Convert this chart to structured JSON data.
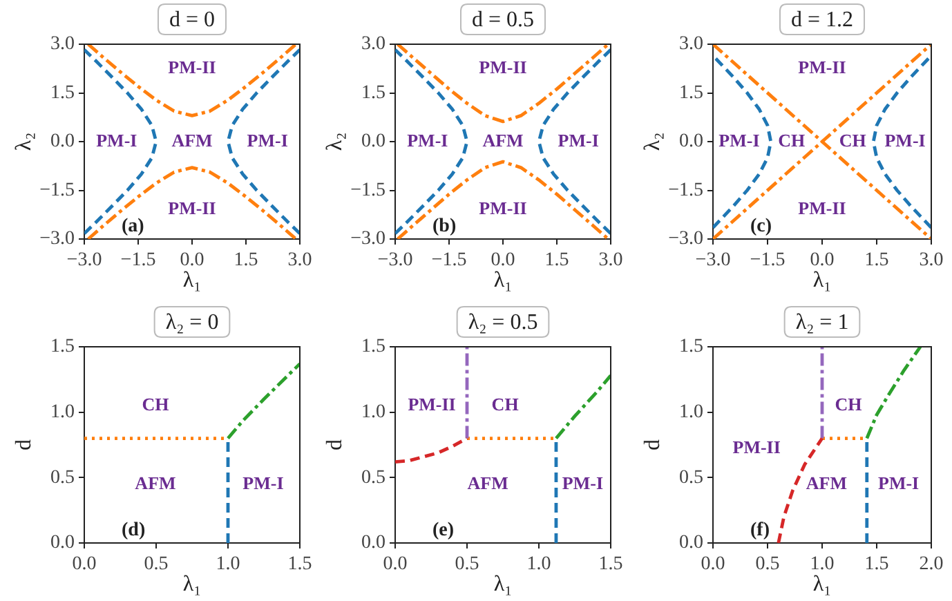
{
  "chart_data": [
    {
      "type": "line",
      "title": "d = 0",
      "xlabel": "λ₁",
      "ylabel": "λ₂",
      "xlim": [
        -3,
        3
      ],
      "ylim": [
        -3,
        3
      ],
      "marker": "none",
      "legend": false,
      "grid": false,
      "xticks": [
        {
          "value": -3,
          "label": "−3.0"
        },
        {
          "value": -1.5,
          "label": "−1.5"
        },
        {
          "value": 0,
          "label": "0.0"
        },
        {
          "value": 1.5,
          "label": "1.5"
        },
        {
          "value": 3,
          "label": "3.0"
        }
      ],
      "yticks": [
        {
          "value": -3,
          "label": "−3.0"
        },
        {
          "value": -1.5,
          "label": "−1.5"
        },
        {
          "value": 0,
          "label": "0.0"
        },
        {
          "value": 1.5,
          "label": "1.5"
        },
        {
          "value": 3,
          "label": "3.0"
        }
      ],
      "series": [
        {
          "color": "#1f77b4",
          "line_style": "dashed",
          "x": [
            3.0,
            2.69,
            2.24,
            1.8,
            1.41,
            1.12,
            1,
            1.12,
            1.41,
            1.8,
            2.24,
            2.69,
            3.0
          ],
          "values": [
            -2.83,
            -2.5,
            -2,
            -1.5,
            -1,
            -0.5,
            0,
            0.5,
            1,
            1.5,
            2,
            2.5,
            2.83
          ]
        },
        {
          "color": "#1f77b4",
          "line_style": "dashed",
          "x": [
            -3.0,
            -2.69,
            -2.24,
            -1.8,
            -1.41,
            -1.12,
            -1,
            -1.12,
            -1.41,
            -1.8,
            -2.24,
            -2.69,
            -3.0
          ],
          "values": [
            -2.83,
            -2.5,
            -2,
            -1.5,
            -1,
            -0.5,
            0,
            0.5,
            1,
            1.5,
            2,
            2.5,
            2.83
          ]
        },
        {
          "color": "#ff7f0e",
          "line_style": "dashdot",
          "x": [
            -2.89,
            -2.5,
            -2,
            -1.5,
            -1,
            -0.5,
            0,
            0.5,
            1,
            1.5,
            2,
            2.5,
            2.89
          ],
          "values": [
            3,
            2.62,
            2.15,
            1.7,
            1.28,
            0.94,
            0.8,
            0.94,
            1.28,
            1.7,
            2.15,
            2.62,
            3
          ]
        },
        {
          "color": "#ff7f0e",
          "line_style": "dashdot",
          "x": [
            -2.89,
            -2.5,
            -2,
            -1.5,
            -1,
            -0.5,
            0,
            0.5,
            1,
            1.5,
            2,
            2.5,
            2.89
          ],
          "values": [
            -3,
            -2.62,
            -2.15,
            -1.7,
            -1.28,
            -0.94,
            -0.8,
            -0.94,
            -1.28,
            -1.7,
            -2.15,
            -2.62,
            -3
          ]
        }
      ],
      "annotations": [
        "PM-II",
        "PM-I",
        "AFM",
        "PM-I",
        "PM-II",
        "(a)"
      ]
    },
    {
      "type": "line",
      "title": "d = 0.5",
      "xlabel": "λ₁",
      "ylabel": "λ₂",
      "xlim": [
        -3,
        3
      ],
      "ylim": [
        -3,
        3
      ],
      "marker": "none",
      "legend": false,
      "grid": false,
      "xticks": [
        {
          "value": -3,
          "label": "−3.0"
        },
        {
          "value": -1.5,
          "label": "−1.5"
        },
        {
          "value": 0,
          "label": "0.0"
        },
        {
          "value": 1.5,
          "label": "1.5"
        },
        {
          "value": 3,
          "label": "3.0"
        }
      ],
      "yticks": [
        {
          "value": -3,
          "label": "−3.0"
        },
        {
          "value": -1.5,
          "label": "−1.5"
        },
        {
          "value": 0,
          "label": "0.0"
        },
        {
          "value": 1.5,
          "label": "1.5"
        },
        {
          "value": 3,
          "label": "3.0"
        }
      ],
      "series": [
        {
          "color": "#1f77b4",
          "line_style": "dashed",
          "x": [
            3.0,
            2.69,
            2.24,
            1.8,
            1.41,
            1.12,
            1,
            1.12,
            1.41,
            1.8,
            2.24,
            2.69,
            3.0
          ],
          "values": [
            -2.83,
            -2.5,
            -2,
            -1.5,
            -1,
            -0.5,
            0,
            0.5,
            1,
            1.5,
            2,
            2.5,
            2.83
          ]
        },
        {
          "color": "#1f77b4",
          "line_style": "dashed",
          "x": [
            -3.0,
            -2.69,
            -2.24,
            -1.8,
            -1.41,
            -1.12,
            -1,
            -1.12,
            -1.41,
            -1.8,
            -2.24,
            -2.69,
            -3.0
          ],
          "values": [
            -2.83,
            -2.5,
            -2,
            -1.5,
            -1,
            -0.5,
            0,
            0.5,
            1,
            1.5,
            2,
            2.5,
            2.83
          ]
        },
        {
          "color": "#ff7f0e",
          "line_style": "dashdot",
          "x": [
            -2.93,
            -2.5,
            -2,
            -1.5,
            -1,
            -0.5,
            0,
            0.5,
            1,
            1.5,
            2,
            2.5,
            2.93
          ],
          "values": [
            3,
            2.58,
            2.1,
            1.62,
            1.18,
            0.8,
            0.62,
            0.8,
            1.18,
            1.62,
            2.1,
            2.58,
            3
          ]
        },
        {
          "color": "#ff7f0e",
          "line_style": "dashdot",
          "x": [
            -2.93,
            -2.5,
            -2,
            -1.5,
            -1,
            -0.5,
            0,
            0.5,
            1,
            1.5,
            2,
            2.5,
            2.93
          ],
          "values": [
            -3,
            -2.58,
            -2.1,
            -1.62,
            -1.18,
            -0.8,
            -0.62,
            -0.8,
            -1.18,
            -1.62,
            -2.1,
            -2.58,
            -3
          ]
        }
      ],
      "annotations": [
        "PM-II",
        "PM-I",
        "AFM",
        "PM-I",
        "PM-II",
        "(b)"
      ]
    },
    {
      "type": "line",
      "title": "d = 1.2",
      "xlabel": "λ₁",
      "ylabel": "λ₂",
      "xlim": [
        -3,
        3
      ],
      "ylim": [
        -3,
        3
      ],
      "marker": "none",
      "legend": false,
      "grid": false,
      "xticks": [
        {
          "value": -3,
          "label": "−3.0"
        },
        {
          "value": -1.5,
          "label": "−1.5"
        },
        {
          "value": 0,
          "label": "0.0"
        },
        {
          "value": 1.5,
          "label": "1.5"
        },
        {
          "value": 3,
          "label": "3.0"
        }
      ],
      "yticks": [
        {
          "value": -3,
          "label": "−3.0"
        },
        {
          "value": -1.5,
          "label": "−1.5"
        },
        {
          "value": 0,
          "label": "0.0"
        },
        {
          "value": 1.5,
          "label": "1.5"
        },
        {
          "value": 3,
          "label": "3.0"
        }
      ],
      "series": [
        {
          "color": "#1f77b4",
          "line_style": "dashed",
          "x": [
            3.0,
            2.45,
            2.06,
            1.73,
            1.5,
            1.41,
            1.5,
            1.73,
            2.06,
            2.45,
            3.0
          ],
          "values": [
            -2.65,
            -2,
            -1.5,
            -1,
            -0.5,
            0,
            0.5,
            1,
            1.5,
            2,
            2.65
          ]
        },
        {
          "color": "#1f77b4",
          "line_style": "dashed",
          "x": [
            -3.0,
            -2.45,
            -2.06,
            -1.73,
            -1.5,
            -1.41,
            -1.5,
            -1.73,
            -2.06,
            -2.45,
            -3.0
          ],
          "values": [
            -2.65,
            -2,
            -1.5,
            -1,
            -0.5,
            0,
            0.5,
            1,
            1.5,
            2,
            2.65
          ]
        },
        {
          "color": "#ff7f0e",
          "line_style": "dashdot",
          "x": [
            -3,
            0,
            3
          ],
          "values": [
            -3,
            0,
            3
          ]
        },
        {
          "color": "#ff7f0e",
          "line_style": "dashdot",
          "x": [
            -3,
            0,
            3
          ],
          "values": [
            3,
            0,
            -3
          ]
        }
      ],
      "annotations": [
        "PM-II",
        "PM-I",
        "CH",
        "CH",
        "PM-I",
        "PM-II",
        "(c)"
      ]
    },
    {
      "type": "line",
      "title": "λ₂ = 0",
      "xlabel": "λ₁",
      "ylabel": "d",
      "xlim": [
        0,
        1.5
      ],
      "ylim": [
        0,
        1.5
      ],
      "marker": "none",
      "legend": false,
      "grid": false,
      "xticks": [
        {
          "value": 0,
          "label": "0.0"
        },
        {
          "value": 0.5,
          "label": "0.5"
        },
        {
          "value": 1,
          "label": "1.0"
        },
        {
          "value": 1.5,
          "label": "1.5"
        }
      ],
      "yticks": [
        {
          "value": 0,
          "label": "0.0"
        },
        {
          "value": 0.5,
          "label": "0.5"
        },
        {
          "value": 1,
          "label": "1.0"
        },
        {
          "value": 1.5,
          "label": "1.5"
        }
      ],
      "series": [
        {
          "color": "#ff7f0e",
          "line_style": "dotted",
          "x": [
            0,
            1
          ],
          "values": [
            0.8,
            0.8
          ]
        },
        {
          "color": "#1f77b4",
          "line_style": "dashed",
          "x": [
            1,
            1
          ],
          "values": [
            0,
            0.8
          ]
        },
        {
          "color": "#2ca02c",
          "line_style": "dashdot",
          "x": [
            1,
            1.1,
            1.25,
            1.5
          ],
          "values": [
            0.8,
            0.93,
            1.1,
            1.37
          ]
        }
      ],
      "annotations": [
        "CH",
        "AFM",
        "PM-I",
        "(d)"
      ]
    },
    {
      "type": "line",
      "title": "λ₂ = 0.5",
      "xlabel": "λ₁",
      "ylabel": "d",
      "xlim": [
        0,
        1.5
      ],
      "ylim": [
        0,
        1.5
      ],
      "marker": "none",
      "legend": false,
      "grid": false,
      "xticks": [
        {
          "value": 0,
          "label": "0.0"
        },
        {
          "value": 0.5,
          "label": "0.5"
        },
        {
          "value": 1,
          "label": "1.0"
        },
        {
          "value": 1.5,
          "label": "1.5"
        }
      ],
      "yticks": [
        {
          "value": 0,
          "label": "0.0"
        },
        {
          "value": 0.5,
          "label": "0.5"
        },
        {
          "value": 1,
          "label": "1.0"
        },
        {
          "value": 1.5,
          "label": "1.5"
        }
      ],
      "series": [
        {
          "color": "#d62728",
          "line_style": "dashed",
          "x": [
            0,
            0.1,
            0.2,
            0.3,
            0.4,
            0.5
          ],
          "values": [
            0.62,
            0.63,
            0.66,
            0.69,
            0.74,
            0.8
          ]
        },
        {
          "color": "#9467bd",
          "line_style": "dashdot",
          "x": [
            0.5,
            0.5
          ],
          "values": [
            0.8,
            1.5
          ]
        },
        {
          "color": "#ff7f0e",
          "line_style": "dotted",
          "x": [
            0.5,
            1.12
          ],
          "values": [
            0.8,
            0.8
          ]
        },
        {
          "color": "#1f77b4",
          "line_style": "dashed",
          "x": [
            1.12,
            1.12
          ],
          "values": [
            0,
            0.8
          ]
        },
        {
          "color": "#2ca02c",
          "line_style": "dashdot",
          "x": [
            1.12,
            1.25,
            1.4,
            1.5
          ],
          "values": [
            0.8,
            0.97,
            1.15,
            1.28
          ]
        }
      ],
      "annotations": [
        "PM-II",
        "CH",
        "AFM",
        "PM-I",
        "(e)"
      ]
    },
    {
      "type": "line",
      "title": "λ₂ = 1",
      "xlabel": "λ₁",
      "ylabel": "d",
      "xlim": [
        0,
        2
      ],
      "ylim": [
        0,
        1.5
      ],
      "marker": "none",
      "legend": false,
      "grid": false,
      "xticks": [
        {
          "value": 0,
          "label": "0.0"
        },
        {
          "value": 0.5,
          "label": "0.5"
        },
        {
          "value": 1,
          "label": "1.0"
        },
        {
          "value": 1.5,
          "label": "1.5"
        },
        {
          "value": 2,
          "label": "2.0"
        }
      ],
      "yticks": [
        {
          "value": 0,
          "label": "0.0"
        },
        {
          "value": 0.5,
          "label": "0.5"
        },
        {
          "value": 1,
          "label": "1.0"
        },
        {
          "value": 1.5,
          "label": "1.5"
        }
      ],
      "series": [
        {
          "color": "#d62728",
          "line_style": "dashed",
          "x": [
            0.6,
            0.65,
            0.73,
            0.84,
            1.0
          ],
          "values": [
            0,
            0.2,
            0.4,
            0.6,
            0.8
          ]
        },
        {
          "color": "#9467bd",
          "line_style": "dashdot",
          "x": [
            1,
            1
          ],
          "values": [
            0.8,
            1.5
          ]
        },
        {
          "color": "#ff7f0e",
          "line_style": "dotted",
          "x": [
            1,
            1.41
          ],
          "values": [
            0.8,
            0.8
          ]
        },
        {
          "color": "#1f77b4",
          "line_style": "dashed",
          "x": [
            1.41,
            1.41
          ],
          "values": [
            0,
            0.8
          ]
        },
        {
          "color": "#2ca02c",
          "line_style": "dashdot",
          "x": [
            1.41,
            1.5,
            1.6,
            1.75,
            1.9
          ],
          "values": [
            0.8,
            0.98,
            1.12,
            1.32,
            1.5
          ]
        }
      ],
      "annotations": [
        "CH",
        "PM-II",
        "AFM",
        "PM-I",
        "(f)"
      ]
    }
  ]
}
